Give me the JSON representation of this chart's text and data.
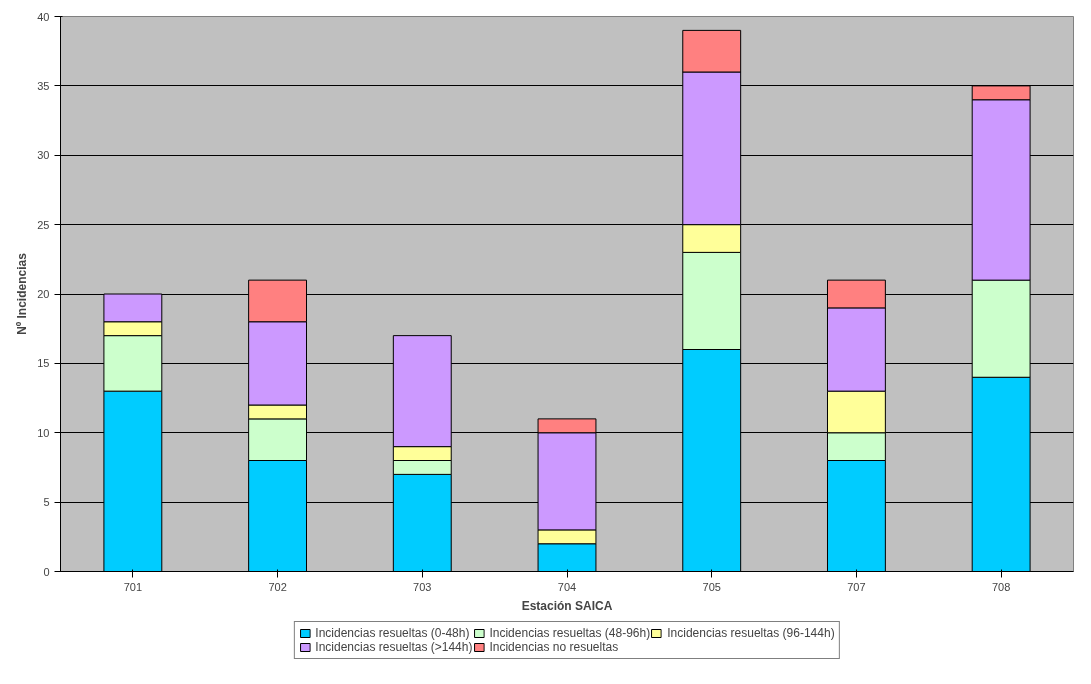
{
  "chart_data": {
    "type": "bar",
    "stacked": true,
    "xlabel": "Estación SAICA",
    "ylabel": "Nº Incidencias",
    "categories": [
      "701",
      "702",
      "703",
      "704",
      "705",
      "707",
      "708"
    ],
    "series": [
      {
        "name": "Incidencias resueltas (0-48h)",
        "color": "#00ccff",
        "values": [
          13,
          8,
          7,
          2,
          16,
          8,
          14
        ]
      },
      {
        "name": "Incidencias resueltas (48-96h)",
        "color": "#ccffcc",
        "values": [
          4,
          3,
          1,
          0,
          7,
          2,
          7
        ]
      },
      {
        "name": "Incidencias resueltas (96-144h)",
        "color": "#ffff99",
        "values": [
          1,
          1,
          1,
          1,
          2,
          3,
          0
        ]
      },
      {
        "name": "Incidencias resueltas (>144h)",
        "color": "#cc99ff",
        "values": [
          2,
          6,
          8,
          7,
          11,
          6,
          13
        ]
      },
      {
        "name": "Incidencias no resueltas",
        "color": "#ff8080",
        "values": [
          0,
          3,
          0,
          1,
          3,
          2,
          1
        ]
      }
    ],
    "ylim": [
      0,
      40
    ],
    "yticks": [
      0,
      5,
      10,
      15,
      20,
      25,
      30,
      35,
      40
    ],
    "grid": "y",
    "legend": "bottom"
  }
}
